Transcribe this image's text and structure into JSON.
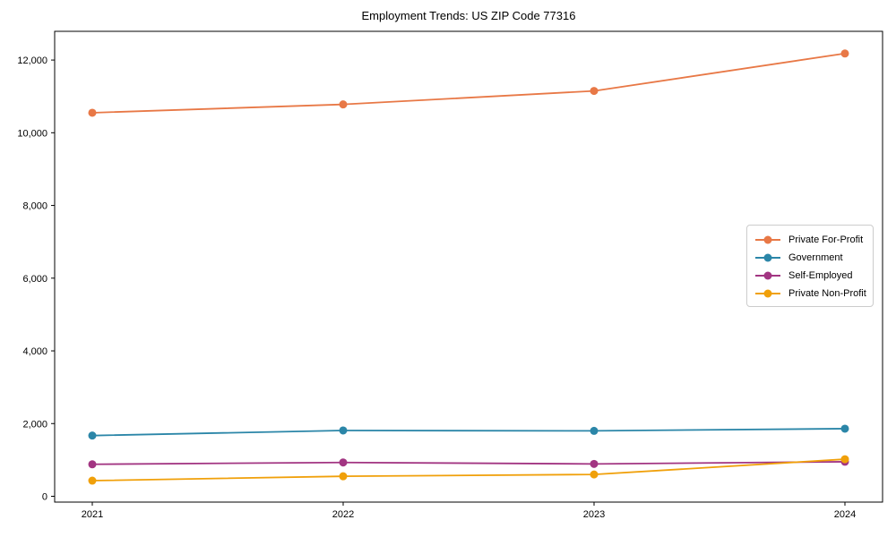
{
  "figure": {
    "background": "#ffffff",
    "spine_color": "#000000",
    "tick_color": "#000000"
  },
  "chart_data": {
    "type": "line",
    "title": "Employment Trends: US ZIP Code 77316",
    "xlabel": "",
    "ylabel": "",
    "grid": false,
    "legend_position": "center right",
    "x": [
      2021,
      2022,
      2023,
      2024
    ],
    "xlim": [
      2020.85,
      2024.15
    ],
    "ylim": [
      -160,
      12790
    ],
    "xticks": {
      "values": [
        2021,
        2022,
        2023,
        2024
      ],
      "labels": [
        "2021",
        "2022",
        "2023",
        "2024"
      ]
    },
    "yticks": {
      "values": [
        0,
        2000,
        4000,
        6000,
        8000,
        10000,
        12000
      ],
      "labels": [
        "0",
        "2,000",
        "4,000",
        "6,000",
        "8,000",
        "10,000",
        "12,000"
      ]
    },
    "series": [
      {
        "name": "Private For-Profit",
        "color": "#e87846",
        "values": [
          10550,
          10780,
          11150,
          12180
        ]
      },
      {
        "name": "Government",
        "color": "#2b86a8",
        "values": [
          1670,
          1810,
          1800,
          1860
        ]
      },
      {
        "name": "Self-Employed",
        "color": "#a23582",
        "values": [
          880,
          930,
          890,
          950
        ]
      },
      {
        "name": "Private Non-Profit",
        "color": "#f0a00a",
        "values": [
          430,
          550,
          600,
          1020
        ]
      }
    ]
  }
}
